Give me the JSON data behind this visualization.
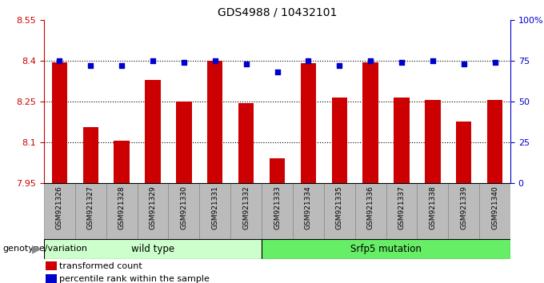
{
  "title": "GDS4988 / 10432101",
  "samples": [
    "GSM921326",
    "GSM921327",
    "GSM921328",
    "GSM921329",
    "GSM921330",
    "GSM921331",
    "GSM921332",
    "GSM921333",
    "GSM921334",
    "GSM921335",
    "GSM921336",
    "GSM921337",
    "GSM921338",
    "GSM921339",
    "GSM921340"
  ],
  "transformed_counts": [
    8.395,
    8.155,
    8.105,
    8.33,
    8.25,
    8.4,
    8.245,
    8.04,
    8.39,
    8.265,
    8.395,
    8.265,
    8.255,
    8.175,
    8.255
  ],
  "percentile_ranks": [
    75,
    72,
    72,
    75,
    74,
    75,
    73,
    68,
    75,
    72,
    75,
    74,
    75,
    73,
    74
  ],
  "ylim_left": [
    7.95,
    8.55
  ],
  "ylim_right": [
    0,
    100
  ],
  "yticks_left": [
    7.95,
    8.1,
    8.25,
    8.4,
    8.55
  ],
  "yticks_right": [
    0,
    25,
    50,
    75,
    100
  ],
  "ytick_labels_left": [
    "7.95",
    "8.1",
    "8.25",
    "8.4",
    "8.55"
  ],
  "ytick_labels_right": [
    "0",
    "25",
    "50",
    "75",
    "100%"
  ],
  "hlines": [
    8.1,
    8.25,
    8.4
  ],
  "bar_color": "#cc0000",
  "scatter_color": "#0000cc",
  "bar_width": 0.5,
  "wild_type_indices": [
    0,
    1,
    2,
    3,
    4,
    5,
    6
  ],
  "mutation_indices": [
    7,
    8,
    9,
    10,
    11,
    12,
    13,
    14
  ],
  "wild_type_label": "wild type",
  "mutation_label": "Srfp5 mutation",
  "genotype_label": "genotype/variation",
  "legend_bar_label": "transformed count",
  "legend_scatter_label": "percentile rank within the sample",
  "wild_type_color": "#ccffcc",
  "mutation_color": "#66ee66",
  "bg_color": "#bbbbbb",
  "plot_bg": "#ffffff",
  "arrow_color": "#888888"
}
